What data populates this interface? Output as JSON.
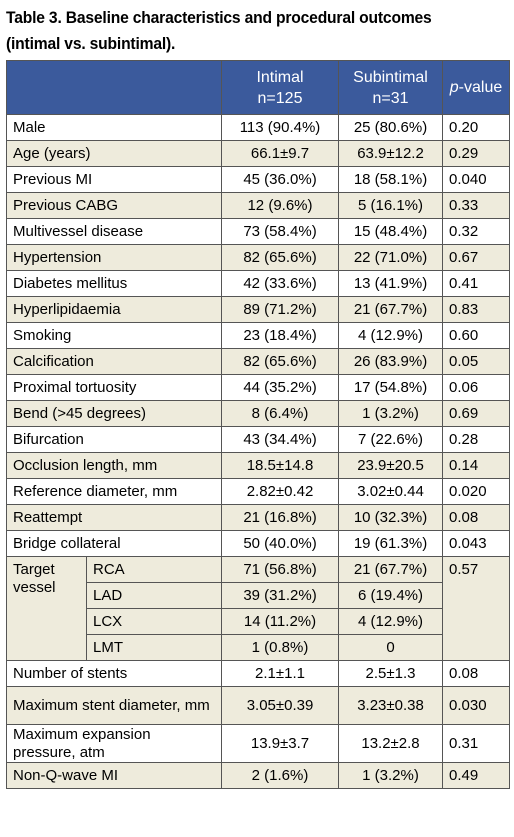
{
  "caption": "Table 3. Baseline characteristics and procedural outcomes (intimal vs. subintimal).",
  "header": {
    "intimal": "Intimal",
    "intimal_n": "n=125",
    "subintimal": "Subintimal",
    "subintimal_n": "n=31",
    "pvalue_italic": "p",
    "pvalue_rest": "-value"
  },
  "rows": [
    {
      "label": "Male",
      "intimal": "113 (90.4%)",
      "subintimal": "25 (80.6%)",
      "p": "0.20"
    },
    {
      "label": "Age (years)",
      "intimal": "66.1±9.7",
      "subintimal": "63.9±12.2",
      "p": "0.29"
    },
    {
      "label": "Previous MI",
      "intimal": "45 (36.0%)",
      "subintimal": "18 (58.1%)",
      "p": "0.040"
    },
    {
      "label": "Previous CABG",
      "intimal": "12 (9.6%)",
      "subintimal": "5 (16.1%)",
      "p": "0.33"
    },
    {
      "label": "Multivessel disease",
      "intimal": "73 (58.4%)",
      "subintimal": "15 (48.4%)",
      "p": "0.32"
    },
    {
      "label": "Hypertension",
      "intimal": "82 (65.6%)",
      "subintimal": "22 (71.0%)",
      "p": "0.67"
    },
    {
      "label": "Diabetes mellitus",
      "intimal": "42 (33.6%)",
      "subintimal": "13 (41.9%)",
      "p": "0.41"
    },
    {
      "label": "Hyperlipidaemia",
      "intimal": "89 (71.2%)",
      "subintimal": "21 (67.7%)",
      "p": "0.83"
    },
    {
      "label": "Smoking",
      "intimal": "23 (18.4%)",
      "subintimal": "4 (12.9%)",
      "p": "0.60"
    },
    {
      "label": "Calcification",
      "intimal": "82 (65.6%)",
      "subintimal": "26 (83.9%)",
      "p": "0.05"
    },
    {
      "label": "Proximal tortuosity",
      "intimal": "44 (35.2%)",
      "subintimal": "17 (54.8%)",
      "p": "0.06"
    },
    {
      "label": "Bend (>45 degrees)",
      "intimal": "8 (6.4%)",
      "subintimal": "1 (3.2%)",
      "p": "0.69"
    },
    {
      "label": "Bifurcation",
      "intimal": "43 (34.4%)",
      "subintimal": "7 (22.6%)",
      "p": "0.28"
    },
    {
      "label": "Occlusion length, mm",
      "intimal": "18.5±14.8",
      "subintimal": "23.9±20.5",
      "p": "0.14"
    },
    {
      "label": "Reference diameter, mm",
      "intimal": "2.82±0.42",
      "subintimal": "3.02±0.44",
      "p": "0.020"
    },
    {
      "label": "Reattempt",
      "intimal": "21 (16.8%)",
      "subintimal": "10 (32.3%)",
      "p": "0.08"
    },
    {
      "label": "Bridge collateral",
      "intimal": "50 (40.0%)",
      "subintimal": "19 (61.3%)",
      "p": "0.043"
    }
  ],
  "target_vessel": {
    "label": "Target vessel",
    "p": "0.57",
    "subrows": [
      {
        "label": "RCA",
        "intimal": "71 (56.8%)",
        "subintimal": "21 (67.7%)"
      },
      {
        "label": "LAD",
        "intimal": "39 (31.2%)",
        "subintimal": "6 (19.4%)"
      },
      {
        "label": "LCX",
        "intimal": "14 (11.2%)",
        "subintimal": "4 (12.9%)"
      },
      {
        "label": "LMT",
        "intimal": "1 (0.8%)",
        "subintimal": "0"
      }
    ]
  },
  "tail_rows": [
    {
      "label": "Number of stents",
      "intimal": "2.1±1.1",
      "subintimal": "2.5±1.3",
      "p": "0.08"
    },
    {
      "label": "Maximum stent diameter, mm",
      "intimal": "3.05±0.39",
      "subintimal": "3.23±0.38",
      "p": "0.030"
    },
    {
      "label": "Maximum expansion pressure, atm",
      "intimal": "13.9±3.7",
      "subintimal": "13.2±2.8",
      "p": "0.31"
    },
    {
      "label": "Non-Q-wave MI",
      "intimal": "2 (1.6%)",
      "subintimal": "1 (3.2%)",
      "p": "0.49"
    }
  ],
  "colors": {
    "header_bg": "#3b5a9c",
    "alt_row_bg": "#eeebdc"
  }
}
